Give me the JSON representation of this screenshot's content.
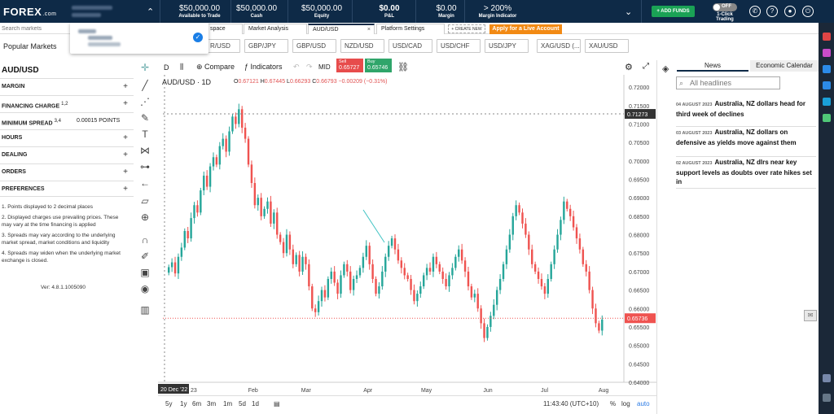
{
  "topbar": {
    "logo": "FOREX",
    "logo_suffix": ".com",
    "stats": [
      {
        "value": "$50,000.00",
        "label": "Available to Trade"
      },
      {
        "value": "$50,000.00",
        "label": "Cash"
      },
      {
        "value": "$50,000.00",
        "label": "Equity"
      },
      {
        "value": "$0.00",
        "label": "P&L"
      },
      {
        "value": "$0.00",
        "label": "Margin"
      },
      {
        "value": "> 200%",
        "label": "Margin Indicator"
      }
    ],
    "add_funds": "+ ADD FUNDS",
    "one_click_state": "OFF",
    "one_click_label": "1-Click Trading",
    "colors": {
      "bg": "#0e2a47",
      "green": "#1aa255",
      "orange": "#f28a14"
    }
  },
  "search": {
    "placeholder": "Search markets"
  },
  "tabs": [
    {
      "label": "space"
    },
    {
      "label": "Market Analysis"
    },
    {
      "label": "AUD/USD",
      "close": "×"
    },
    {
      "label": "Platform Settings"
    }
  ],
  "create_new": "+ CREATE NEW",
  "apply_live": "Apply for a Live Account",
  "popular": {
    "label": "Popular Markets",
    "pairs": [
      "R/USD",
      "GBP/JPY",
      "GBP/USD",
      "NZD/USD",
      "USD/CAD",
      "USD/CHF",
      "USD/JPY",
      "XAG/USD (...",
      "XAU/USD"
    ]
  },
  "left_panel": {
    "title": "AUD/USD",
    "sections": [
      {
        "label": "MARGIN"
      },
      {
        "label": "FINANCING CHARGE",
        "sup": "1,2"
      },
      {
        "label": "MINIMUM SPREAD",
        "sup": "3,4",
        "value": "0.00015 POINTS"
      },
      {
        "label": "HOURS"
      },
      {
        "label": "DEALING"
      },
      {
        "label": "ORDERS"
      },
      {
        "label": "PREFERENCES"
      }
    ],
    "notes": [
      "1. Points displayed to 2 decimal places",
      "2. Displayed charges use prevailing prices. These may vary at the time financing is applied",
      "3. Spreads may vary according to the underlying market spread, market conditions and liquidity",
      "4. Spreads may widen when the underlying market exchange is closed."
    ],
    "version": "Ver: 4.8.1.1005090"
  },
  "chart_header": {
    "interval_btn": "D",
    "compare": "Compare",
    "indicators": "Indicators",
    "mid": "MID",
    "sell_label": "Sell",
    "sell_price": "0.65727",
    "buy_label": "Buy",
    "buy_price": "0.65746"
  },
  "chart_info": {
    "symbol": "AUD/USD · 1D",
    "o": "0.67121",
    "h": "0.67445",
    "l": "0.66293",
    "c": "0.66793",
    "chg": "−0.00209 (−0.31%)"
  },
  "chart_data": {
    "type": "candlestick",
    "ylim": [
      0.64,
      0.722
    ],
    "yticks": [
      "0.72000",
      "0.71500",
      "0.71000",
      "0.70500",
      "0.70000",
      "0.69500",
      "0.69000",
      "0.68500",
      "0.68000",
      "0.67500",
      "0.67000",
      "0.66500",
      "0.66000",
      "0.65500",
      "0.65000",
      "0.64500",
      "0.64000"
    ],
    "xticks": [
      "23",
      "Feb",
      "Mar",
      "Apr",
      "May",
      "Jun",
      "Jul",
      "Aug"
    ],
    "crosshair_date": "20 Dec '22",
    "crosshair_price": "0.71273",
    "last_price": "0.65736",
    "closes": [
      0.6712,
      0.6725,
      0.6695,
      0.674,
      0.6765,
      0.681,
      0.679,
      0.6845,
      0.688,
      0.686,
      0.692,
      0.696,
      0.693,
      0.6985,
      0.701,
      0.699,
      0.704,
      0.706,
      0.7025,
      0.708,
      0.712,
      0.71,
      0.714,
      0.709,
      0.706,
      0.699,
      0.694,
      0.688,
      0.69,
      0.685,
      0.687,
      0.689,
      0.683,
      0.686,
      0.68,
      0.678,
      0.675,
      0.68,
      0.676,
      0.672,
      0.6745,
      0.67,
      0.674,
      0.672,
      0.666,
      0.66,
      0.659,
      0.662,
      0.665,
      0.663,
      0.668,
      0.67,
      0.667,
      0.664,
      0.669,
      0.672,
      0.67,
      0.665,
      0.668,
      0.669,
      0.671,
      0.674,
      0.677,
      0.672,
      0.668,
      0.664,
      0.666,
      0.67,
      0.674,
      0.677,
      0.679,
      0.676,
      0.673,
      0.671,
      0.669,
      0.668,
      0.665,
      0.662,
      0.664,
      0.666,
      0.669,
      0.671,
      0.67,
      0.674,
      0.672,
      0.67,
      0.668,
      0.666,
      0.669,
      0.671,
      0.674,
      0.676,
      0.673,
      0.67,
      0.666,
      0.663,
      0.664,
      0.66,
      0.656,
      0.652,
      0.655,
      0.658,
      0.661,
      0.665,
      0.668,
      0.672,
      0.676,
      0.68,
      0.685,
      0.688,
      0.686,
      0.683,
      0.68,
      0.676,
      0.672,
      0.67,
      0.668,
      0.666,
      0.664,
      0.668,
      0.672,
      0.676,
      0.68,
      0.684,
      0.689,
      0.687,
      0.685,
      0.682,
      0.679,
      0.676,
      0.672,
      0.67,
      0.665,
      0.66,
      0.656,
      0.654,
      0.657
    ]
  },
  "bottom": {
    "ranges": [
      "5y",
      "1y",
      "6m",
      "3m",
      "1m",
      "5d",
      "1d"
    ],
    "time": "11:43:40 (UTC+10)",
    "pct": "%",
    "log": "log",
    "auto": "auto"
  },
  "news": {
    "tabs": [
      "News",
      "Economic Calendar"
    ],
    "search_placeholder": "All headlines",
    "items": [
      {
        "date": "04 AUGUST 2023",
        "text": "Australia, NZ dollars head for third week of declines"
      },
      {
        "date": "03 AUGUST 2023",
        "text": "Australia, NZ dollars on defensive as yields move against them"
      },
      {
        "date": "02 AUGUST 2023",
        "text": "Australia, NZ dlrs near key support levels as doubts over rate hikes set in"
      }
    ]
  }
}
